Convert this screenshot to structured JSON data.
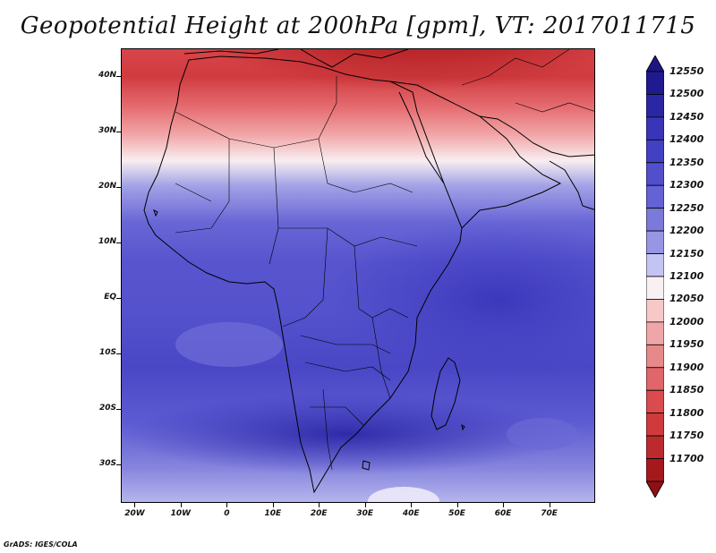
{
  "title": "Geopotential Height at 200hPa [gpm], VT: 2017011715",
  "footer": "GrADS: IGES/COLA",
  "map": {
    "variable": "Geopotential Height",
    "level": "200hPa",
    "units": "gpm",
    "valid_time": "2017011715",
    "lon_range": [
      -23,
      80
    ],
    "lat_range": [
      -37,
      45
    ],
    "lat_ticks": [
      {
        "value": 40,
        "label": "40N"
      },
      {
        "value": 30,
        "label": "30N"
      },
      {
        "value": 20,
        "label": "20N"
      },
      {
        "value": 10,
        "label": "10N"
      },
      {
        "value": 0,
        "label": "EQ"
      },
      {
        "value": -10,
        "label": "10S"
      },
      {
        "value": -20,
        "label": "20S"
      },
      {
        "value": -30,
        "label": "30S"
      }
    ],
    "lon_ticks": [
      {
        "value": -20,
        "label": "20W"
      },
      {
        "value": -10,
        "label": "10W"
      },
      {
        "value": 0,
        "label": "0"
      },
      {
        "value": 10,
        "label": "10E"
      },
      {
        "value": 20,
        "label": "20E"
      },
      {
        "value": 30,
        "label": "30E"
      },
      {
        "value": 40,
        "label": "40E"
      },
      {
        "value": 50,
        "label": "50E"
      },
      {
        "value": 60,
        "label": "60E"
      },
      {
        "value": 70,
        "label": "70E"
      }
    ]
  },
  "colorbar": {
    "levels": [
      {
        "value": "12550",
        "color": "#1f1a8f"
      },
      {
        "value": "12500",
        "color": "#2b27a4"
      },
      {
        "value": "12450",
        "color": "#3935b8"
      },
      {
        "value": "12400",
        "color": "#4440c4"
      },
      {
        "value": "12350",
        "color": "#524fcc"
      },
      {
        "value": "12300",
        "color": "#6462d4"
      },
      {
        "value": "12250",
        "color": "#7b7ada"
      },
      {
        "value": "12200",
        "color": "#9796e4"
      },
      {
        "value": "12150",
        "color": "#c4c4f2"
      },
      {
        "value": "12100",
        "color": "#f8f0f2"
      },
      {
        "value": "12050",
        "color": "#f7c8c8"
      },
      {
        "value": "12000",
        "color": "#efa6a8"
      },
      {
        "value": "11950",
        "color": "#e7898b"
      },
      {
        "value": "11900",
        "color": "#e0666a"
      },
      {
        "value": "11850",
        "color": "#da4a4e"
      },
      {
        "value": "11800",
        "color": "#d13a3d"
      },
      {
        "value": "11750",
        "color": "#bd2a2e"
      },
      {
        "value": "11700",
        "color": "#a5191d"
      }
    ],
    "top_arrow_color": "#1c1685",
    "bottom_arrow_color": "#8f1014"
  }
}
